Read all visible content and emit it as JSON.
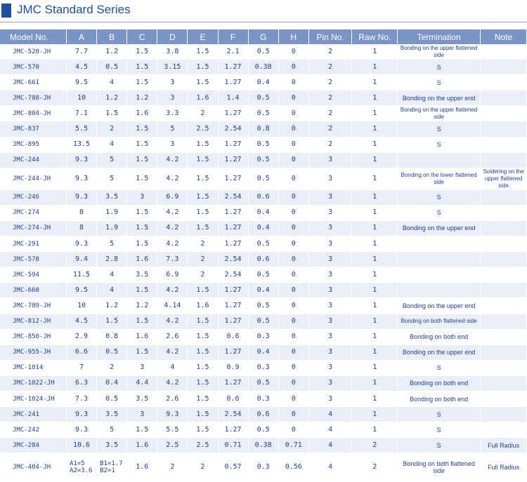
{
  "title": "JMC Standard Series",
  "headers": [
    "Model No.",
    "A",
    "B",
    "C",
    "D",
    "E",
    "F",
    "G",
    "H",
    "Pin No.",
    "Raw No.",
    "Termination",
    "Note"
  ],
  "rows": [
    [
      "JMC-520-JH",
      "7.7",
      "1.2",
      "1.5",
      "3.8",
      "1.5",
      "2.1",
      "0.5",
      "0",
      "2",
      "1",
      "Bonding on the upper flattened side",
      ""
    ],
    [
      "JMC-570",
      "4.5",
      "0.5",
      "1.5",
      "3.15",
      "1.5",
      "1.27",
      "0.38",
      "0",
      "2",
      "1",
      "S",
      ""
    ],
    [
      "JMC-661",
      "9.5",
      "4",
      "1.5",
      "3",
      "1.5",
      "1.27",
      "0.4",
      "0",
      "2",
      "1",
      "S",
      ""
    ],
    [
      "JMC-788-JH",
      "10",
      "1.2",
      "1.2",
      "3",
      "1.6",
      "1.4",
      "0.5",
      "0",
      "2",
      "1",
      "Bonding on the upper end",
      ""
    ],
    [
      "JMC-804-JH",
      "7.1",
      "1.5",
      "1.6",
      "3.3",
      "2",
      "1.27",
      "0.5",
      "0",
      "2",
      "1",
      "Bonding on the upper flattened side",
      ""
    ],
    [
      "JMC-837",
      "5.5",
      "2",
      "1.5",
      "5",
      "2.5",
      "2.54",
      "0.8",
      "0",
      "2",
      "1",
      "S",
      ""
    ],
    [
      "JMC-895",
      "13.5",
      "4",
      "1.5",
      "3",
      "1.5",
      "1.27",
      "0.5",
      "0",
      "2",
      "1",
      "S",
      ""
    ],
    [
      "JMC-244",
      "9.3",
      "5",
      "1.5",
      "4.2",
      "1.5",
      "1.27",
      "0.5",
      "0",
      "3",
      "1",
      "",
      ""
    ],
    [
      "JMC-244-JH",
      "9.3",
      "5",
      "1.5",
      "4.2",
      "1.5",
      "1.27",
      "0.5",
      "0",
      "3",
      "1",
      "Bonding on the lower flattened side",
      "Soldering on the upper flattened side"
    ],
    [
      "JMC-246",
      "9.3",
      "3.5",
      "3",
      "6.9",
      "1.5",
      "2.54",
      "0.6",
      "0",
      "3",
      "1",
      "S",
      ""
    ],
    [
      "JMC-274",
      "8",
      "1.9",
      "1.5",
      "4.2",
      "1.5",
      "1.27",
      "0.4",
      "0",
      "3",
      "1",
      "S",
      ""
    ],
    [
      "JMC-274-JH",
      "8",
      "1.9",
      "1.5",
      "4.2",
      "1.5",
      "1.27",
      "0.4",
      "0",
      "3",
      "1",
      "Bonding on the upper end",
      ""
    ],
    [
      "JMC-291",
      "9.3",
      "5",
      "1.5",
      "4.2",
      "2",
      "1.27",
      "0.5",
      "0",
      "3",
      "1",
      "",
      ""
    ],
    [
      "JMC-578",
      "9.4",
      "2.8",
      "1.6",
      "7.3",
      "2",
      "2.54",
      "0.6",
      "0",
      "3",
      "1",
      "",
      ""
    ],
    [
      "JMC-594",
      "11.5",
      "4",
      "3.5",
      "6.9",
      "2",
      "2.54",
      "0.5",
      "0",
      "3",
      "1",
      "",
      ""
    ],
    [
      "JMC-660",
      "9.5",
      "4",
      "1.5",
      "4.2",
      "1.5",
      "1.27",
      "0.4",
      "0",
      "3",
      "1",
      "",
      ""
    ],
    [
      "JMC-789-JH",
      "10",
      "1.2",
      "1.2",
      "4.14",
      "1.6",
      "1.27",
      "0.5",
      "0",
      "3",
      "1",
      "Bonding on the upper end",
      ""
    ],
    [
      "JMC-812-JH",
      "4.5",
      "1.5",
      "1.5",
      "4.2",
      "1.5",
      "1.27",
      "0.5",
      "0",
      "3",
      "1",
      "Bonding on both flattened side",
      ""
    ],
    [
      "JMC-850-JH",
      "2.9",
      "0.8",
      "1.6",
      "2.6",
      "1.5",
      "0.6",
      "0.3",
      "0",
      "3",
      "1",
      "Bonding on both end",
      ""
    ],
    [
      "JMC-955-JH",
      "6.6",
      "0.5",
      "1.5",
      "4.2",
      "1.5",
      "1.27",
      "0.4",
      "0",
      "3",
      "1",
      "Bonding on the upper end",
      ""
    ],
    [
      "JMC-1014",
      "7",
      "2",
      "3",
      "4",
      "1.5",
      "0.9",
      "0.3",
      "0",
      "3",
      "1",
      "S",
      ""
    ],
    [
      "JMC-1022-JH",
      "6.3",
      "0.4",
      "4.4",
      "4.2",
      "1.5",
      "1.27",
      "0.5",
      "0",
      "3",
      "1",
      "Bonding on both end",
      ""
    ],
    [
      "JMC-1024-JH",
      "7.3",
      "0.5",
      "3.5",
      "2.6",
      "1.5",
      "0.6",
      "0.3",
      "0",
      "3",
      "1",
      "Bonding on both end",
      ""
    ],
    [
      "JMC-241",
      "9.3",
      "3.5",
      "3",
      "9.3",
      "1.5",
      "2.54",
      "0.6",
      "0",
      "4",
      "1",
      "S",
      ""
    ],
    [
      "JMC-242",
      "9.3",
      "5",
      "1.5",
      "5.5",
      "1.5",
      "1.27",
      "0.5",
      "0",
      "4",
      "1",
      "S",
      ""
    ],
    [
      "JMC-284",
      "10.6",
      "3.5",
      "1.6",
      "2.5",
      "2.5",
      "0.71",
      "0.38",
      "0.71",
      "4",
      "2",
      "S",
      "Full Radius"
    ]
  ],
  "last_row": {
    "model": "JMC-404-JH",
    "a1": "A1=5",
    "a2": "A2=3.6",
    "b1": "B1=1.7",
    "b2": "B2=1",
    "c": "1.6",
    "d": "2",
    "e": "2",
    "f": "0.57",
    "g": "0.3",
    "h": "0.56",
    "pin": "4",
    "raw": "2",
    "term": "Bonding on both flattened side",
    "note": "Full Radius"
  }
}
